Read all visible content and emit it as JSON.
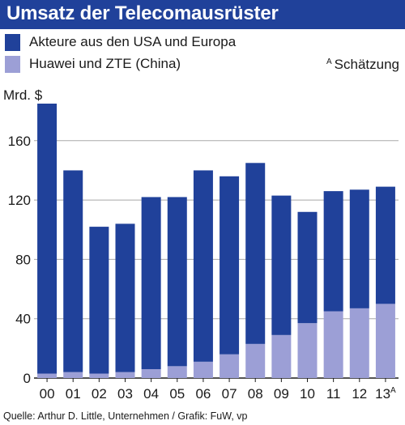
{
  "title": "Umsatz der Telecomausrüster",
  "legend": [
    {
      "label": "Akteure aus den USA und Europa",
      "color": "#20419a"
    },
    {
      "label": "Huawei und ZTE (China)",
      "color": "#9c9fd6"
    }
  ],
  "note": {
    "marker": "A",
    "text": "Schätzung"
  },
  "unit": "Mrd. $",
  "source": "Quelle: Arthur D. Little, Unternehmen / Grafik: FuW, vp",
  "chart_data": {
    "type": "bar",
    "stacked": true,
    "categories": [
      "00",
      "01",
      "02",
      "03",
      "04",
      "05",
      "06",
      "07",
      "08",
      "09",
      "10",
      "11",
      "12",
      "13"
    ],
    "category_suffix": {
      "13": "A"
    },
    "series": [
      {
        "name": "Huawei und ZTE (China)",
        "color": "#9c9fd6",
        "values": [
          3,
          4,
          3,
          4,
          6,
          8,
          11,
          16,
          23,
          29,
          37,
          45,
          47,
          50
        ]
      },
      {
        "name": "Akteure aus den USA und Europa",
        "color": "#20419a",
        "values": [
          182,
          136,
          99,
          100,
          116,
          114,
          129,
          120,
          122,
          94,
          75,
          81,
          80,
          79
        ]
      }
    ],
    "totals": [
      185,
      140,
      102,
      104,
      122,
      122,
      140,
      136,
      145,
      123,
      112,
      126,
      127,
      129
    ],
    "ylabel": "Mrd. $",
    "ylim": [
      0,
      185
    ],
    "yticks": [
      0,
      40,
      80,
      120,
      160
    ],
    "grid": "horizontal"
  }
}
